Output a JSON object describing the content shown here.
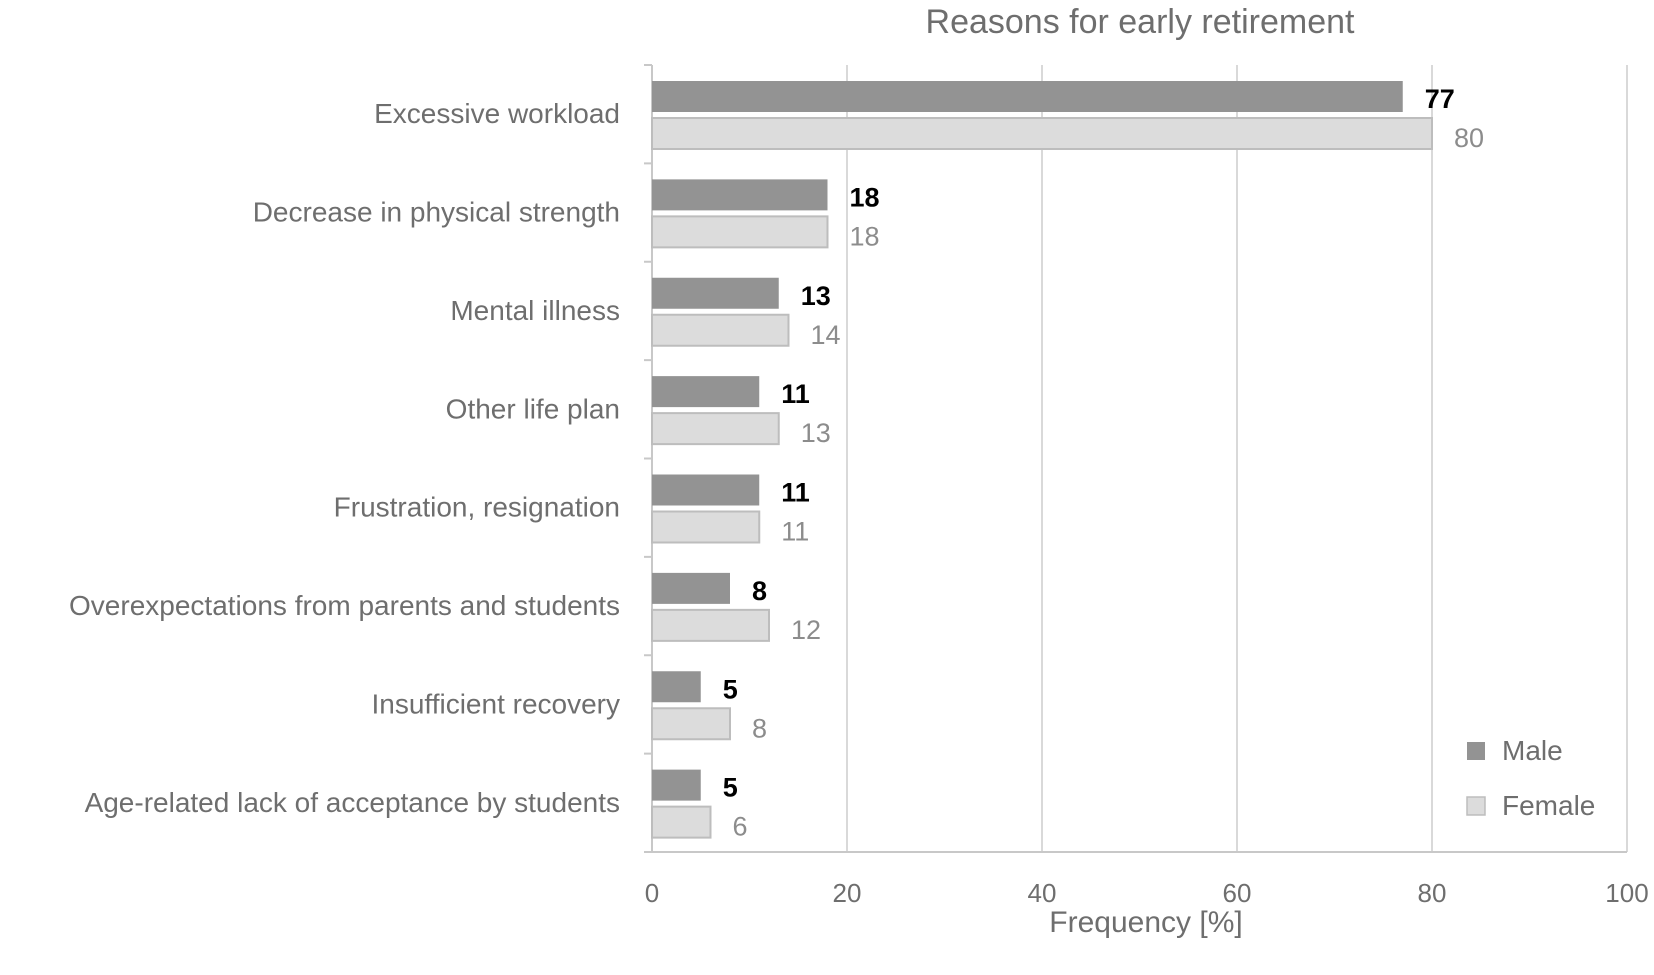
{
  "chart_data": {
    "type": "bar",
    "orientation": "horizontal",
    "title": "Reasons for early retirement",
    "xlabel": "Frequency [%]",
    "ylabel": "",
    "xlim": [
      0,
      100
    ],
    "xticks": [
      "0",
      "20",
      "40",
      "60",
      "80",
      "100"
    ],
    "grid": true,
    "legend_position": "bottom-right",
    "categories": [
      "Excessive workload",
      "Decrease in physical strength",
      "Mental illness",
      "Other life plan",
      "Frustration, resignation",
      "Overexpectations from parents and students",
      "Insufficient recovery",
      "Age-related lack of acceptance by students"
    ],
    "series": [
      {
        "name": "Male",
        "color": "#939393",
        "values": [
          77,
          18,
          13,
          11,
          11,
          8,
          5,
          5
        ]
      },
      {
        "name": "Female",
        "color": "#dcdcdc",
        "values": [
          80,
          18,
          14,
          13,
          11,
          12,
          8,
          6
        ]
      }
    ]
  }
}
